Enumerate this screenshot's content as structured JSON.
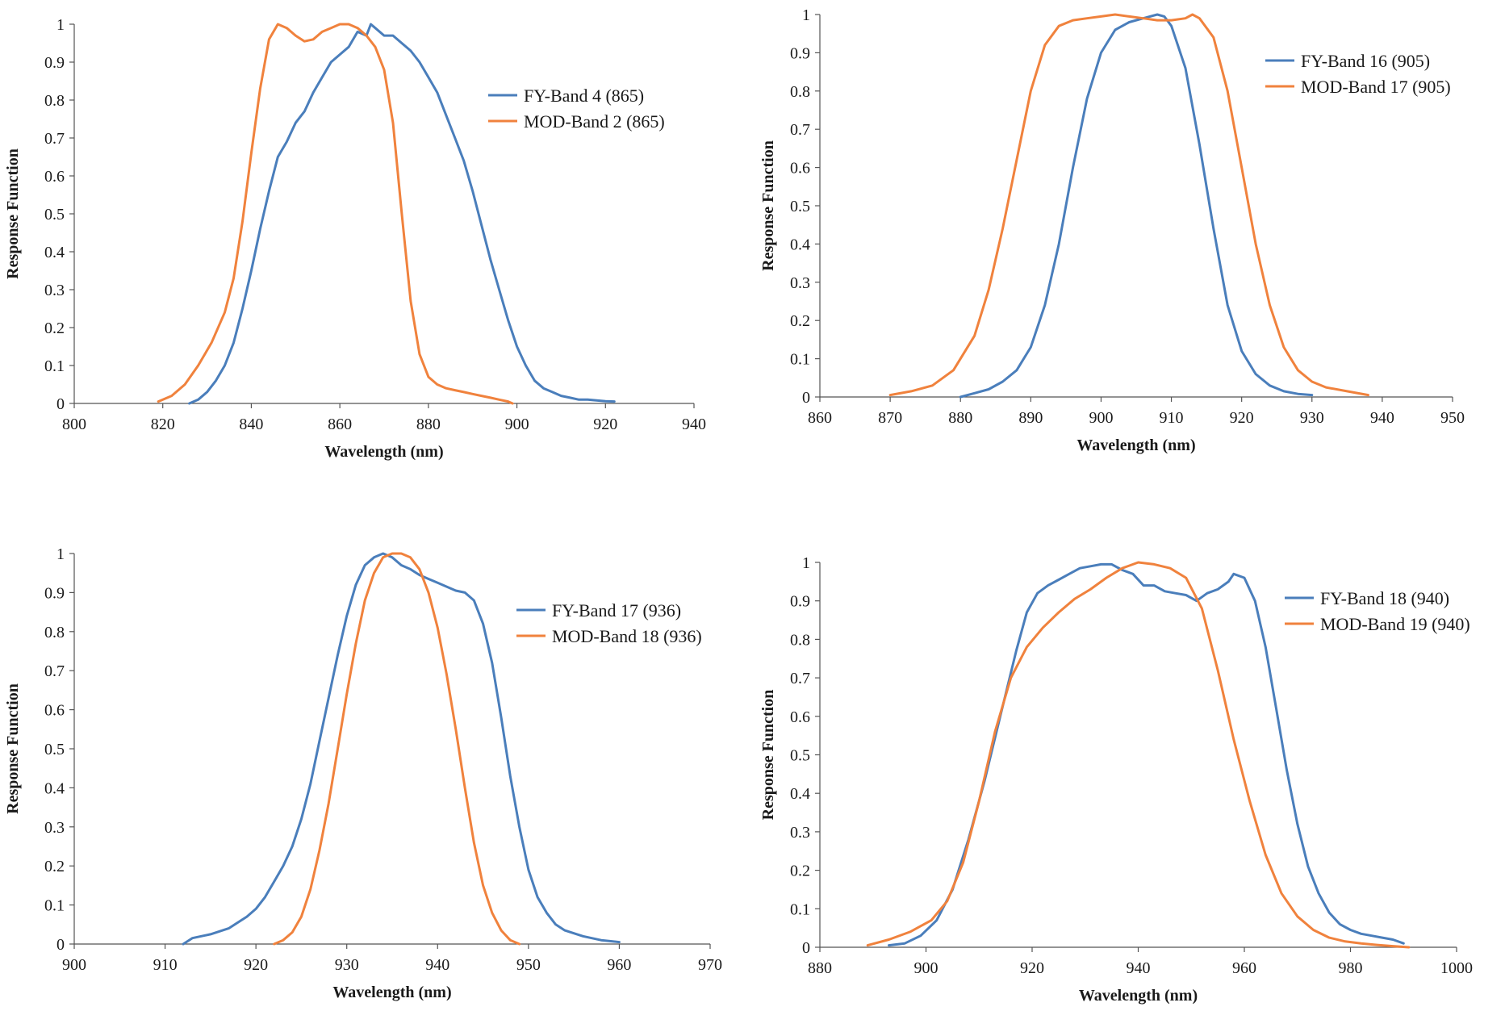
{
  "colors": {
    "fy": "#4a7ebb",
    "mod": "#f0823d",
    "axis": "#555555"
  },
  "chart_data": [
    {
      "type": "line",
      "xlabel": "Wavelength (nm)",
      "ylabel": "Response Function",
      "xlim": [
        800,
        940
      ],
      "xticks": [
        800,
        820,
        840,
        860,
        880,
        900,
        920,
        940
      ],
      "ylim": [
        0,
        1
      ],
      "yticks": [
        0,
        0.1,
        0.2,
        0.3,
        0.4,
        0.5,
        0.6,
        0.7,
        0.8,
        0.9,
        1
      ],
      "yticklabels": [
        "0",
        "0.1",
        "0.2",
        "0.3",
        "0.4",
        "0.5",
        "0.6",
        "0.7",
        "0.8",
        "0.9",
        "1"
      ],
      "grid": false,
      "legend_position": "top-right",
      "series": [
        {
          "name": "FY-Band 4 (865)",
          "color_key": "fy",
          "x": [
            826,
            828,
            830,
            832,
            834,
            836,
            838,
            840,
            842,
            844,
            846,
            848,
            850,
            852,
            854,
            856,
            858,
            860,
            862,
            864,
            866,
            867,
            868,
            870,
            872,
            874,
            876,
            878,
            880,
            882,
            884,
            886,
            888,
            890,
            892,
            894,
            896,
            898,
            900,
            902,
            904,
            906,
            908,
            910,
            912,
            914,
            916,
            918,
            920,
            922
          ],
          "y": [
            0.0,
            0.01,
            0.03,
            0.06,
            0.1,
            0.16,
            0.25,
            0.35,
            0.46,
            0.56,
            0.65,
            0.69,
            0.74,
            0.77,
            0.82,
            0.86,
            0.9,
            0.92,
            0.94,
            0.98,
            0.97,
            1.0,
            0.99,
            0.97,
            0.97,
            0.95,
            0.93,
            0.9,
            0.86,
            0.82,
            0.76,
            0.7,
            0.64,
            0.56,
            0.47,
            0.38,
            0.3,
            0.22,
            0.15,
            0.1,
            0.06,
            0.04,
            0.03,
            0.02,
            0.015,
            0.01,
            0.01,
            0.008,
            0.006,
            0.005
          ]
        },
        {
          "name": "MOD-Band 2 (865)",
          "color_key": "mod",
          "x": [
            819,
            822,
            825,
            828,
            831,
            834,
            836,
            838,
            840,
            842,
            844,
            846,
            848,
            850,
            852,
            854,
            856,
            858,
            860,
            862,
            864,
            866,
            868,
            870,
            872,
            874,
            876,
            878,
            880,
            882,
            884,
            886,
            888,
            890,
            892,
            894,
            896,
            898,
            899
          ],
          "y": [
            0.005,
            0.02,
            0.05,
            0.1,
            0.16,
            0.24,
            0.33,
            0.48,
            0.66,
            0.83,
            0.96,
            1.0,
            0.99,
            0.97,
            0.955,
            0.96,
            0.98,
            0.99,
            1.0,
            1.0,
            0.99,
            0.97,
            0.94,
            0.88,
            0.74,
            0.5,
            0.27,
            0.13,
            0.07,
            0.05,
            0.04,
            0.035,
            0.03,
            0.025,
            0.02,
            0.015,
            0.01,
            0.005,
            0.0
          ]
        }
      ]
    },
    {
      "type": "line",
      "xlabel": "Wavelength (nm)",
      "ylabel": "Response Function",
      "xlim": [
        860,
        950
      ],
      "xticks": [
        860,
        870,
        880,
        890,
        900,
        910,
        920,
        930,
        940,
        950
      ],
      "ylim": [
        0,
        1
      ],
      "yticks": [
        0,
        0.1,
        0.2,
        0.3,
        0.4,
        0.5,
        0.6,
        0.7,
        0.8,
        0.9,
        1
      ],
      "yticklabels": [
        "0",
        "0.1",
        "0.2",
        "0.3",
        "0.4",
        "0.5",
        "0.6",
        "0.7",
        "0.8",
        "0.9",
        "1"
      ],
      "grid": false,
      "legend_position": "top-right",
      "series": [
        {
          "name": "FY-Band 16 (905)",
          "color_key": "fy",
          "x": [
            880,
            882,
            884,
            886,
            888,
            890,
            892,
            894,
            896,
            898,
            900,
            902,
            904,
            906,
            908,
            909,
            910,
            912,
            914,
            916,
            918,
            920,
            922,
            924,
            926,
            928,
            930
          ],
          "y": [
            0.0,
            0.01,
            0.02,
            0.04,
            0.07,
            0.13,
            0.24,
            0.4,
            0.6,
            0.78,
            0.9,
            0.96,
            0.98,
            0.99,
            1.0,
            0.995,
            0.97,
            0.86,
            0.66,
            0.44,
            0.24,
            0.12,
            0.06,
            0.03,
            0.015,
            0.008,
            0.005
          ]
        },
        {
          "name": "MOD-Band 17 (905)",
          "color_key": "mod",
          "x": [
            870,
            873,
            876,
            879,
            882,
            884,
            886,
            888,
            890,
            892,
            894,
            896,
            898,
            900,
            902,
            904,
            906,
            908,
            910,
            912,
            913,
            914,
            916,
            918,
            920,
            922,
            924,
            926,
            928,
            930,
            932,
            935,
            938
          ],
          "y": [
            0.005,
            0.015,
            0.03,
            0.07,
            0.16,
            0.28,
            0.44,
            0.62,
            0.8,
            0.92,
            0.97,
            0.985,
            0.99,
            0.995,
            1.0,
            0.995,
            0.99,
            0.985,
            0.985,
            0.99,
            1.0,
            0.99,
            0.94,
            0.8,
            0.6,
            0.4,
            0.24,
            0.13,
            0.07,
            0.04,
            0.025,
            0.015,
            0.005
          ]
        }
      ]
    },
    {
      "type": "line",
      "xlabel": "Wavelength (nm)",
      "ylabel": "Response Function",
      "xlim": [
        900,
        970
      ],
      "xticks": [
        900,
        910,
        920,
        930,
        940,
        950,
        960,
        970
      ],
      "ylim": [
        0,
        1
      ],
      "yticks": [
        0,
        0.1,
        0.2,
        0.3,
        0.4,
        0.5,
        0.6,
        0.7,
        0.8,
        0.9,
        1
      ],
      "yticklabels": [
        "0",
        "0.1",
        "0.2",
        "0.3",
        "0.4",
        "0.5",
        "0.6",
        "0.7",
        "0.8",
        "0.9",
        "1"
      ],
      "grid": false,
      "legend_position": "top-right",
      "series": [
        {
          "name": "FY-Band 17 (936)",
          "color_key": "fy",
          "x": [
            912,
            913,
            915,
            917,
            919,
            920,
            921,
            922,
            923,
            924,
            925,
            926,
            927,
            928,
            929,
            930,
            931,
            932,
            933,
            934,
            935,
            936,
            937,
            938,
            939,
            940,
            941,
            942,
            943,
            944,
            945,
            946,
            947,
            948,
            949,
            950,
            951,
            952,
            953,
            954,
            956,
            958,
            960
          ],
          "y": [
            0.0,
            0.015,
            0.025,
            0.04,
            0.07,
            0.09,
            0.12,
            0.16,
            0.2,
            0.25,
            0.32,
            0.41,
            0.52,
            0.63,
            0.74,
            0.84,
            0.92,
            0.97,
            0.99,
            1.0,
            0.99,
            0.97,
            0.96,
            0.945,
            0.935,
            0.925,
            0.915,
            0.905,
            0.9,
            0.88,
            0.82,
            0.72,
            0.58,
            0.43,
            0.3,
            0.19,
            0.12,
            0.08,
            0.05,
            0.035,
            0.02,
            0.01,
            0.005
          ]
        },
        {
          "name": "MOD-Band 18 (936)",
          "color_key": "mod",
          "x": [
            922,
            923,
            924,
            925,
            926,
            927,
            928,
            929,
            930,
            931,
            932,
            933,
            934,
            935,
            936,
            937,
            938,
            939,
            940,
            941,
            942,
            943,
            944,
            945,
            946,
            947,
            948,
            949
          ],
          "y": [
            0.0,
            0.01,
            0.03,
            0.07,
            0.14,
            0.24,
            0.36,
            0.5,
            0.64,
            0.77,
            0.88,
            0.95,
            0.99,
            1.0,
            1.0,
            0.99,
            0.96,
            0.9,
            0.81,
            0.69,
            0.55,
            0.4,
            0.26,
            0.15,
            0.08,
            0.035,
            0.01,
            0.0
          ]
        }
      ]
    },
    {
      "type": "line",
      "xlabel": "Wavelength (nm)",
      "ylabel": "Response Function",
      "xlim": [
        880,
        1000
      ],
      "xticks": [
        880,
        900,
        920,
        940,
        960,
        980,
        1000
      ],
      "ylim": [
        0,
        1
      ],
      "yticks": [
        0,
        0.1,
        0.2,
        0.3,
        0.4,
        0.5,
        0.6,
        0.7,
        0.8,
        0.9,
        1
      ],
      "yticklabels": [
        "0",
        "0.1",
        "0.2",
        "0.3",
        "0.4",
        "0.5",
        "0.6",
        "0.7",
        "0.8",
        "0.9",
        "1"
      ],
      "grid": false,
      "legend_position": "top-right",
      "series": [
        {
          "name": "FY-Band 18 (940)",
          "color_key": "fy",
          "x": [
            893,
            896,
            899,
            902,
            905,
            908,
            911,
            914,
            917,
            919,
            921,
            923,
            925,
            927,
            929,
            931,
            933,
            935,
            937,
            939,
            941,
            943,
            945,
            947,
            949,
            951,
            953,
            955,
            957,
            958,
            960,
            962,
            964,
            966,
            968,
            970,
            972,
            974,
            976,
            978,
            980,
            982,
            984,
            986,
            988,
            990
          ],
          "y": [
            0.005,
            0.01,
            0.03,
            0.07,
            0.15,
            0.28,
            0.43,
            0.6,
            0.77,
            0.87,
            0.92,
            0.94,
            0.955,
            0.97,
            0.985,
            0.99,
            0.995,
            0.995,
            0.98,
            0.97,
            0.94,
            0.94,
            0.925,
            0.92,
            0.915,
            0.9,
            0.92,
            0.93,
            0.95,
            0.97,
            0.96,
            0.9,
            0.78,
            0.62,
            0.46,
            0.32,
            0.21,
            0.14,
            0.09,
            0.06,
            0.045,
            0.035,
            0.03,
            0.025,
            0.02,
            0.01
          ]
        },
        {
          "name": "MOD-Band 19 (940)",
          "color_key": "mod",
          "x": [
            889,
            893,
            897,
            901,
            904,
            907,
            910,
            913,
            916,
            919,
            922,
            925,
            928,
            931,
            934,
            937,
            940,
            943,
            946,
            949,
            952,
            955,
            958,
            961,
            964,
            967,
            970,
            973,
            976,
            979,
            982,
            985,
            988,
            991
          ],
          "y": [
            0.005,
            0.02,
            0.04,
            0.07,
            0.12,
            0.22,
            0.38,
            0.56,
            0.7,
            0.78,
            0.83,
            0.87,
            0.905,
            0.93,
            0.96,
            0.985,
            1.0,
            0.995,
            0.985,
            0.96,
            0.88,
            0.72,
            0.54,
            0.38,
            0.24,
            0.14,
            0.08,
            0.045,
            0.025,
            0.015,
            0.01,
            0.006,
            0.003,
            0.0
          ]
        }
      ]
    }
  ]
}
